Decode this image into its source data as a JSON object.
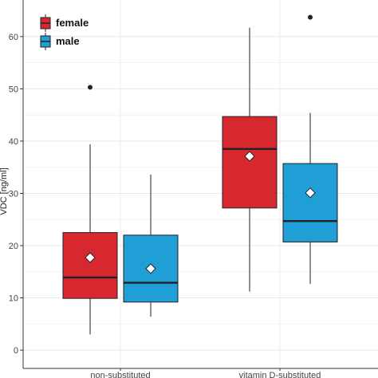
{
  "chart_data": {
    "type": "boxplot",
    "ylabel": "VDC [ng/ml]",
    "xlabel": "",
    "ylim": [
      -3.5,
      67
    ],
    "yticks": [
      0,
      10,
      20,
      30,
      40,
      50,
      60
    ],
    "grid": true,
    "legend_position": "top-left",
    "categories": [
      "non-substituted",
      "vitamin D-substituted"
    ],
    "series": [
      {
        "name": "female",
        "color": "#d7282f",
        "boxes": [
          {
            "category": "non-substituted",
            "whisker_low": 3,
            "q1": 9.9,
            "median": 13.9,
            "q3": 22.5,
            "whisker_high": 39.4,
            "mean": 17.7,
            "outliers": [
              50.3
            ]
          },
          {
            "category": "vitamin D-substituted",
            "whisker_low": 11.2,
            "q1": 27.2,
            "median": 38.5,
            "q3": 44.7,
            "whisker_high": 61.7,
            "mean": 37.1,
            "outliers": []
          }
        ]
      },
      {
        "name": "male",
        "color": "#1f9fd6",
        "boxes": [
          {
            "category": "non-substituted",
            "whisker_low": 6.4,
            "q1": 9.2,
            "median": 12.9,
            "q3": 22.0,
            "whisker_high": 33.6,
            "mean": 15.6,
            "outliers": []
          },
          {
            "category": "vitamin D-substituted",
            "whisker_low": 12.7,
            "q1": 20.7,
            "median": 24.7,
            "q3": 35.7,
            "whisker_high": 45.4,
            "mean": 30.1,
            "outliers": [
              63.7
            ]
          }
        ]
      }
    ]
  }
}
